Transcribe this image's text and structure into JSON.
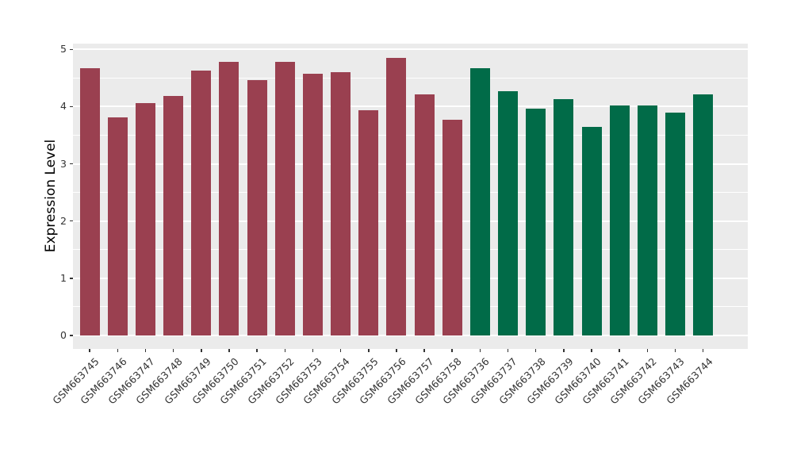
{
  "figure": {
    "background_color": "#FFFFFF",
    "panel_background_color": "#EBEBEB",
    "gridline_color": "#FFFFFF",
    "axis_text_color": "#333333",
    "tick_mark_color": "#333333"
  },
  "chart_data": {
    "type": "bar",
    "title": "",
    "xlabel": "",
    "ylabel": "Expression Level",
    "ylim": [
      0,
      5.25
    ],
    "yticks": [
      0,
      1,
      2,
      3,
      4,
      5
    ],
    "minor_grid_step": 0.5,
    "grid": "major and minor horizontal gridlines, white on grey panel",
    "legend_position": "none",
    "x_label_rotation_deg": 45,
    "categories": [
      "GSM663745",
      "GSM663746",
      "GSM663747",
      "GSM663748",
      "GSM663749",
      "GSM663750",
      "GSM663751",
      "GSM663752",
      "GSM663753",
      "GSM663754",
      "GSM663755",
      "GSM663756",
      "GSM663757",
      "GSM663758",
      "GSM663736",
      "GSM663737",
      "GSM663738",
      "GSM663739",
      "GSM663740",
      "GSM663741",
      "GSM663742",
      "GSM663743",
      "GSM663744"
    ],
    "values": [
      4.67,
      3.81,
      4.06,
      4.18,
      4.63,
      4.78,
      4.46,
      4.78,
      4.57,
      4.6,
      3.93,
      4.85,
      4.21,
      3.77,
      4.67,
      4.27,
      3.96,
      4.13,
      3.65,
      4.02,
      4.02,
      3.9,
      4.21
    ],
    "bar_color_keys": [
      "maroon",
      "maroon",
      "maroon",
      "maroon",
      "maroon",
      "maroon",
      "maroon",
      "maroon",
      "maroon",
      "maroon",
      "maroon",
      "maroon",
      "maroon",
      "maroon",
      "green",
      "green",
      "green",
      "green",
      "green",
      "green",
      "green",
      "green",
      "green"
    ],
    "group_colors": {
      "maroon": "#9A4050",
      "green": "#016B48"
    }
  }
}
